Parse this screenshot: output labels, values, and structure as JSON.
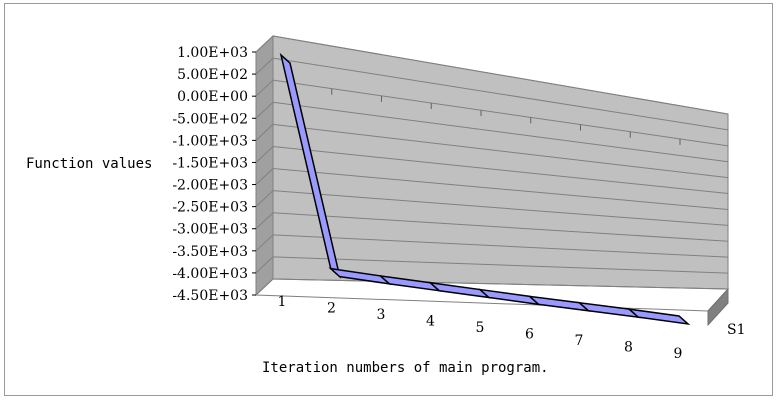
{
  "chart_data": {
    "type": "line",
    "style": "3d-ribbon",
    "title": "",
    "xlabel": "Iteration numbers of main program.",
    "ylabel": "Function values",
    "categories": [
      "1",
      "2",
      "3",
      "4",
      "5",
      "6",
      "7",
      "8",
      "9"
    ],
    "series": [
      {
        "name": "S1",
        "values": [
          750,
          -4000,
          -4080,
          -4150,
          -4220,
          -4290,
          -4350,
          -4410,
          -4480
        ],
        "color": "#9999ff"
      }
    ],
    "ylim": [
      -4500,
      1000
    ],
    "ytick_values": [
      1000,
      500,
      0,
      -500,
      -1000,
      -1500,
      -2000,
      -2500,
      -3000,
      -3500,
      -4000,
      -4500
    ],
    "ytick_labels": [
      "1.00E+03",
      "5.00E+02",
      "0.00E+00",
      "-5.00E+02",
      "-1.00E+03",
      "-1.50E+03",
      "-2.00E+03",
      "-2.50E+03",
      "-3.00E+03",
      "-3.50E+03",
      "-4.00E+03",
      "-4.50E+03"
    ],
    "grid": true,
    "wall_color": "#c0c0c0",
    "floor_color": "#808080"
  }
}
